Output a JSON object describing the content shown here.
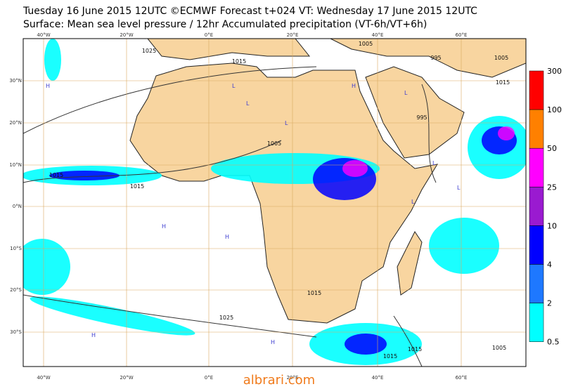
{
  "header": {
    "line1": "Tuesday 16 June 2015 12UTC ©ECMWF Forecast t+024 VT: Wednesday 17 June 2015 12UTC",
    "line2": "Surface: Mean sea level pressure / 12hr Accumulated precipitation (VT-6h/VT+6h)"
  },
  "map": {
    "lon_labels": [
      "40°W",
      "20°W",
      "0°E",
      "20°E",
      "40°E",
      "60°E"
    ],
    "lat_labels": [
      "30°N",
      "20°N",
      "10°N",
      "0°N",
      "10°S",
      "20°S",
      "30°S"
    ],
    "isobars": [
      "1025",
      "1015",
      "1015",
      "1015",
      "1005",
      "1005",
      "995",
      "995",
      "1005",
      "1015",
      "1025",
      "1015",
      "1015",
      "1005",
      "1015"
    ],
    "pressure_marks": [
      "L",
      "L",
      "L",
      "H",
      "H",
      "H",
      "L",
      "L",
      "H",
      "H",
      "L",
      "L",
      "H"
    ]
  },
  "colorbar": {
    "labels": [
      "300",
      "100",
      "50",
      "25",
      "10",
      "4",
      "2",
      "0.5"
    ],
    "colors": [
      "#ff0000",
      "#ff8000",
      "#ff00ff",
      "#9a1ad0",
      "#0000ff",
      "#1e78ff",
      "#00ffff"
    ]
  },
  "watermark": "albrari.com"
}
